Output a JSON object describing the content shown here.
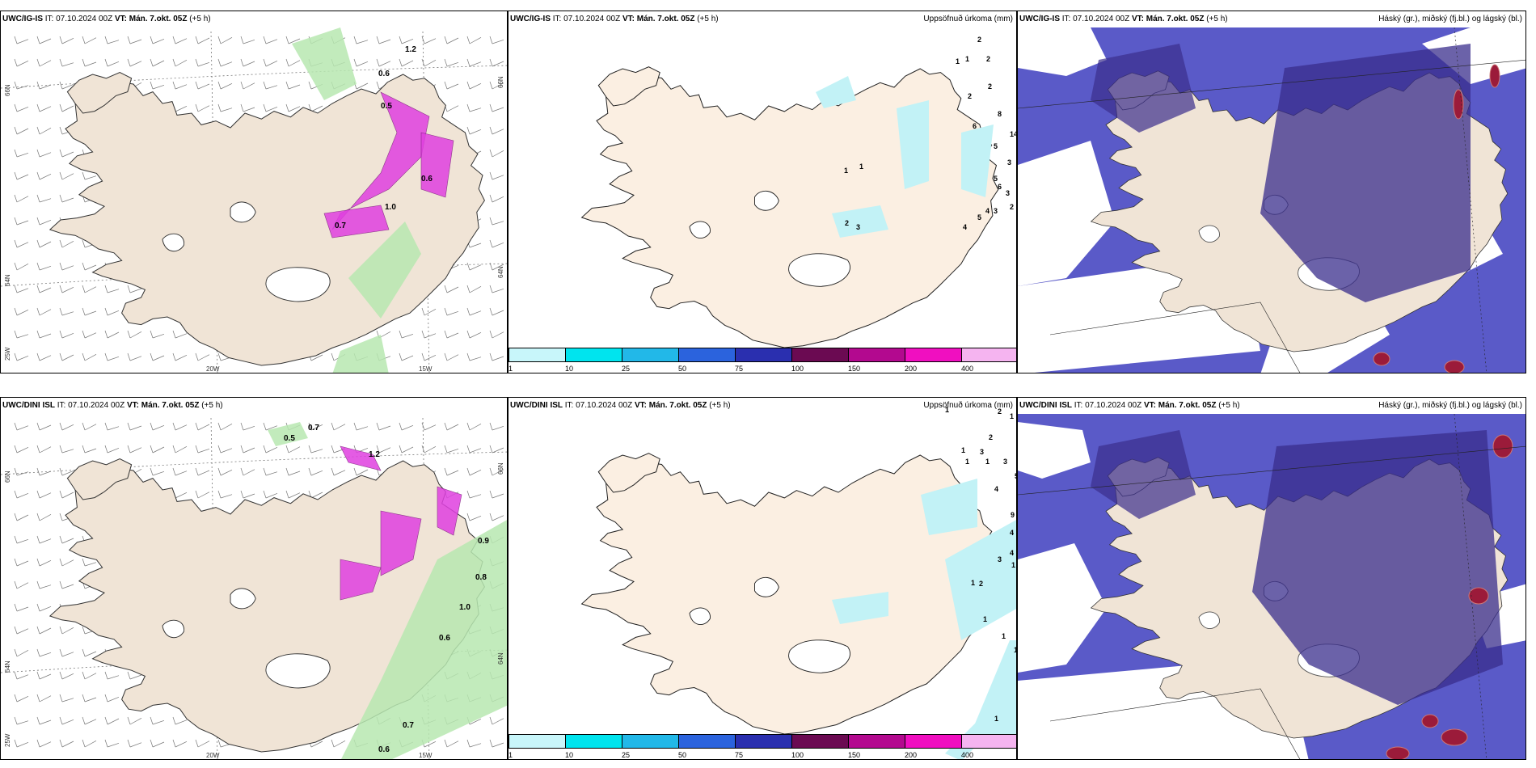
{
  "colors": {
    "land": "#f0e4d6",
    "land_light": "#fbefe2",
    "ice_white": "#ffffff",
    "precip_light_green": "#b7e8b0",
    "precip_green": "#4caf50",
    "magenta": "#e040e0",
    "cloud_low": "#5a5ac8",
    "cloud_high": "#3a2e8c",
    "cloud_blue_edge": "#4fa3e8",
    "red_cloud": "#9b1b3a",
    "cyan_precip": "#c2f2f6"
  },
  "panels": [
    {
      "id": "top-left",
      "header": {
        "model": "UWC/IG-IS",
        "it_label": "IT: 07.10.2024 00Z",
        "vt_label": "VT: Mán. 7.okt. 05Z",
        "offset": "(+5 h)"
      },
      "right_title": "",
      "axis_labels": {
        "lon1": "20W",
        "lon2": "15W",
        "lat1": "66N",
        "lat2": "64N",
        "lon3": "25W"
      },
      "values": [
        "0.6",
        "1.2",
        "0.5",
        "1.0",
        "0.7",
        "0.6"
      ]
    },
    {
      "id": "top-middle",
      "header": {
        "model": "UWC/IG-IS",
        "it_label": "IT: 07.10.2024 00Z",
        "vt_label": "VT: Mán. 7.okt. 05Z",
        "offset": "(+5 h)"
      },
      "right_title": "Uppsöfnuð úrkoma (mm)",
      "values": [
        "2",
        "1",
        "1",
        "2",
        "2",
        "2",
        "6",
        "8",
        "14",
        "5",
        "3",
        "5",
        "6",
        "3",
        "2",
        "4",
        "3",
        "4",
        "5",
        "1",
        "1",
        "2",
        "3"
      ]
    },
    {
      "id": "top-right",
      "header": {
        "model": "UWC/IG-IS",
        "it_label": "IT: 07.10.2024 00Z",
        "vt_label": "VT: Mán. 7.okt. 05Z",
        "offset": "(+5 h)"
      },
      "right_title": "Háský (gr.), miðský (fj.bl.) og lágský (bl.)"
    },
    {
      "id": "bottom-left",
      "header": {
        "model": "UWC/DINI ISL",
        "it_label": "IT: 07.10.2024 00Z",
        "vt_label": "VT: Mán. 7.okt. 05Z",
        "offset": "(+5 h)"
      },
      "right_title": "",
      "axis_labels": {
        "lon1": "20W",
        "lon2": "15W",
        "lat1": "66N",
        "lat2": "64N",
        "lon3": "25W"
      },
      "values": [
        "0.7",
        "0.5",
        "1.2",
        "0.9",
        "0.8",
        "1.0",
        "0.6",
        "0.7",
        "0.6"
      ]
    },
    {
      "id": "bottom-middle",
      "header": {
        "model": "UWC/DINI ISL",
        "it_label": "IT: 07.10.2024 00Z",
        "vt_label": "VT: Mán. 7.okt. 05Z",
        "offset": "(+5 h)"
      },
      "right_title": "Uppsöfnuð úrkoma (mm)",
      "values": [
        "1",
        "2",
        "1",
        "1",
        "2",
        "3",
        "1",
        "1",
        "3",
        "5",
        "4",
        "9",
        "4",
        "4",
        "3",
        "1",
        "2",
        "1",
        "1",
        "1",
        "1",
        "1"
      ]
    },
    {
      "id": "bottom-right",
      "header": {
        "model": "UWC/DINI ISL",
        "it_label": "IT: 07.10.2024 00Z",
        "vt_label": "VT: Mán. 7.okt. 05Z",
        "offset": "(+5 h)"
      },
      "right_title": "Háský (gr.), miðský (fj.bl.) og lágský (bl.)"
    }
  ],
  "precip_scale": {
    "labels": [
      "1",
      "10",
      "25",
      "50",
      "75",
      "100",
      "150",
      "200",
      "400"
    ],
    "colors": [
      "#c8f6fa",
      "#00e4ee",
      "#22b8e8",
      "#2b63dd",
      "#2a2faf",
      "#6b0a52",
      "#b3098f",
      "#f00fc0",
      "#f5b4f0"
    ]
  }
}
